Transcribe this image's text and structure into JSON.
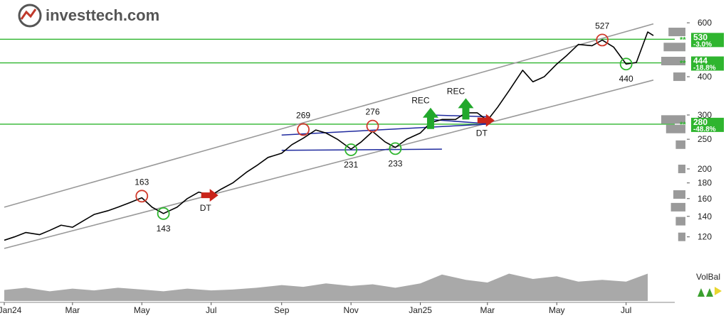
{
  "logo": {
    "name": "investtech.com",
    "icon": "investtech-logo-icon"
  },
  "chart_data": {
    "type": "line",
    "title": "",
    "xlabel": "",
    "ylabel": "",
    "scale": "log",
    "ylim": [
      110,
      640
    ],
    "y_ticks": [
      120,
      140,
      160,
      180,
      200,
      250,
      300,
      400,
      600
    ],
    "x_ticks": [
      {
        "label": "Jan24",
        "date": "2024-01-01"
      },
      {
        "label": "Mar",
        "date": "2024-03-01"
      },
      {
        "label": "May",
        "date": "2024-05-01"
      },
      {
        "label": "Jul",
        "date": "2024-07-01"
      },
      {
        "label": "Sep",
        "date": "2024-09-01"
      },
      {
        "label": "Nov",
        "date": "2024-11-01"
      },
      {
        "label": "Jan25",
        "date": "2025-01-01"
      },
      {
        "label": "Mar",
        "date": "2025-03-01"
      },
      {
        "label": "May",
        "date": "2025-05-01"
      },
      {
        "label": "Jul",
        "date": "2025-07-01"
      }
    ],
    "price": {
      "dates": [
        "2024-01-01",
        "2024-01-10",
        "2024-01-20",
        "2024-02-01",
        "2024-02-10",
        "2024-02-20",
        "2024-03-01",
        "2024-03-10",
        "2024-03-20",
        "2024-04-01",
        "2024-04-10",
        "2024-04-20",
        "2024-05-01",
        "2024-05-10",
        "2024-05-20",
        "2024-06-01",
        "2024-06-10",
        "2024-06-20",
        "2024-07-01",
        "2024-07-10",
        "2024-07-20",
        "2024-08-01",
        "2024-08-10",
        "2024-08-20",
        "2024-09-01",
        "2024-09-10",
        "2024-09-20",
        "2024-10-01",
        "2024-10-10",
        "2024-10-20",
        "2024-11-01",
        "2024-11-10",
        "2024-11-20",
        "2024-12-01",
        "2024-12-10",
        "2024-12-20",
        "2025-01-01",
        "2025-01-10",
        "2025-01-20",
        "2025-02-01",
        "2025-02-10",
        "2025-02-20",
        "2025-03-01",
        "2025-03-10",
        "2025-03-20",
        "2025-04-01",
        "2025-04-10",
        "2025-04-20",
        "2025-05-01",
        "2025-05-10",
        "2025-05-20",
        "2025-06-01",
        "2025-06-10",
        "2025-06-20",
        "2025-07-01",
        "2025-07-10",
        "2025-07-20",
        "2025-07-25"
      ],
      "values": [
        117,
        120,
        124,
        122,
        126,
        131,
        129,
        135,
        142,
        146,
        150,
        155,
        161,
        150,
        143,
        150,
        160,
        168,
        164,
        172,
        180,
        195,
        205,
        218,
        225,
        240,
        252,
        268,
        262,
        250,
        232,
        245,
        265,
        245,
        235,
        250,
        262,
        283,
        290,
        290,
        305,
        305,
        288,
        318,
        360,
        420,
        385,
        400,
        440,
        470,
        510,
        505,
        527,
        500,
        440,
        445,
        560,
        545
      ]
    },
    "channel": {
      "upper": [
        {
          "date": "2024-01-01",
          "value": 150
        },
        {
          "date": "2025-07-25",
          "value": 595
        }
      ],
      "lower": [
        {
          "date": "2024-01-01",
          "value": 110
        },
        {
          "date": "2025-07-25",
          "value": 390
        }
      ]
    },
    "horizontal_levels": [
      {
        "value": 530,
        "label": "530",
        "change": "-3.0%"
      },
      {
        "value": 444,
        "label": "444",
        "change": "-18.8%"
      },
      {
        "value": 280,
        "label": "280",
        "change": "-48.8%"
      }
    ],
    "pattern_lines": [
      {
        "from": {
          "date": "2024-09-01",
          "value": 258
        },
        "to": {
          "date": "2025-03-01",
          "value": 280
        }
      },
      {
        "from": {
          "date": "2024-09-01",
          "value": 230
        },
        "to": {
          "date": "2025-01-20",
          "value": 232
        }
      },
      {
        "from": {
          "date": "2025-01-10",
          "value": 300
        },
        "to": {
          "date": "2025-03-01",
          "value": 296
        }
      },
      {
        "from": {
          "date": "2025-01-10",
          "value": 290
        },
        "to": {
          "date": "2025-03-01",
          "value": 281
        }
      }
    ],
    "tops": [
      {
        "date": "2024-05-01",
        "value": 163,
        "label": "163"
      },
      {
        "date": "2024-09-20",
        "value": 269,
        "label": "269"
      },
      {
        "date": "2024-11-20",
        "value": 276,
        "label": "276"
      },
      {
        "date": "2025-06-10",
        "value": 527,
        "label": "527"
      }
    ],
    "bottoms": [
      {
        "date": "2024-05-20",
        "value": 143,
        "label": "143"
      },
      {
        "date": "2024-11-01",
        "value": 231,
        "label": "231"
      },
      {
        "date": "2024-12-10",
        "value": 233,
        "label": "233"
      },
      {
        "date": "2025-07-01",
        "value": 440,
        "label": "440"
      }
    ],
    "signals": [
      {
        "type": "buy",
        "date": "2025-01-10",
        "value": 270,
        "label": "REC"
      },
      {
        "type": "buy",
        "date": "2025-02-10",
        "value": 290,
        "label": "REC"
      },
      {
        "type": "sell",
        "date": "2024-07-01",
        "value": 164,
        "label": "DT"
      },
      {
        "type": "sell",
        "date": "2025-03-01",
        "value": 288,
        "label": "DT"
      }
    ],
    "volume": {
      "dates": [
        "2024-01-01",
        "2024-01-20",
        "2024-02-10",
        "2024-03-01",
        "2024-03-20",
        "2024-04-10",
        "2024-05-01",
        "2024-05-20",
        "2024-06-10",
        "2024-07-01",
        "2024-07-20",
        "2024-08-10",
        "2024-09-01",
        "2024-09-20",
        "2024-10-10",
        "2024-11-01",
        "2024-11-20",
        "2024-12-10",
        "2025-01-01",
        "2025-01-20",
        "2025-02-10",
        "2025-03-01",
        "2025-03-20",
        "2025-04-10",
        "2025-05-01",
        "2025-05-20",
        "2025-06-10",
        "2025-07-01",
        "2025-07-20"
      ],
      "values": [
        25,
        30,
        22,
        28,
        24,
        30,
        26,
        22,
        28,
        24,
        26,
        30,
        36,
        32,
        40,
        34,
        38,
        30,
        40,
        60,
        48,
        42,
        62,
        50,
        56,
        44,
        48,
        44,
        62
      ]
    },
    "volume_profile": [
      {
        "value": 560,
        "weight": 0.7
      },
      {
        "value": 500,
        "weight": 0.9
      },
      {
        "value": 450,
        "weight": 1.0
      },
      {
        "value": 400,
        "weight": 0.5
      },
      {
        "value": 290,
        "weight": 1.0
      },
      {
        "value": 270,
        "weight": 0.8
      },
      {
        "value": 240,
        "weight": 0.4
      },
      {
        "value": 200,
        "weight": 0.3
      },
      {
        "value": 165,
        "weight": 0.5
      },
      {
        "value": 150,
        "weight": 0.6
      },
      {
        "value": 135,
        "weight": 0.4
      },
      {
        "value": 120,
        "weight": 0.3
      }
    ],
    "indicator": {
      "label": "VolBal"
    }
  }
}
